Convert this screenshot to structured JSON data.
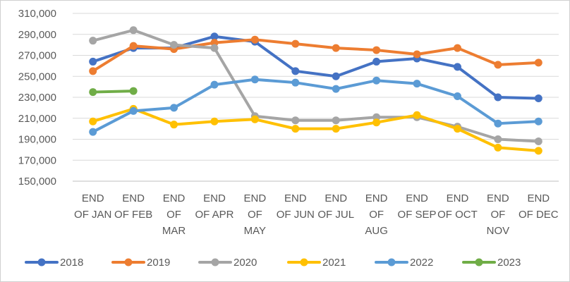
{
  "chart_data": {
    "type": "line",
    "title": "",
    "xlabel": "",
    "ylabel": "",
    "ylim": [
      150000,
      310000
    ],
    "yticks": [
      "150,000",
      "170,000",
      "190,000",
      "210,000",
      "230,000",
      "250,000",
      "270,000",
      "290,000",
      "310,000"
    ],
    "ytick_values": [
      150000,
      170000,
      190000,
      210000,
      230000,
      250000,
      270000,
      290000,
      310000
    ],
    "grid": true,
    "legend_position": "bottom",
    "categories": [
      [
        "END",
        "OF JAN"
      ],
      [
        "END",
        "OF FEB"
      ],
      [
        "END",
        "OF",
        "MAR"
      ],
      [
        "END",
        "OF APR"
      ],
      [
        "END",
        "OF",
        "MAY"
      ],
      [
        "END",
        "OF JUN"
      ],
      [
        "END",
        "OF JUL"
      ],
      [
        "END",
        "OF",
        "AUG"
      ],
      [
        "END",
        "OF SEP"
      ],
      [
        "END",
        "OF OCT"
      ],
      [
        "END",
        "OF",
        "NOV"
      ],
      [
        "END",
        "OF DEC"
      ]
    ],
    "series": [
      {
        "name": "2018",
        "color": "#4472C4",
        "values": [
          264000,
          277000,
          277000,
          288000,
          283000,
          255000,
          250000,
          264000,
          267000,
          259000,
          230000,
          229000
        ]
      },
      {
        "name": "2019",
        "color": "#ED7D31",
        "values": [
          255000,
          279000,
          276000,
          282000,
          285000,
          281000,
          277000,
          275000,
          271000,
          277000,
          261000,
          263000
        ]
      },
      {
        "name": "2020",
        "color": "#A5A5A5",
        "values": [
          284000,
          294000,
          280000,
          277000,
          212000,
          208000,
          208000,
          211000,
          211000,
          202000,
          190000,
          188000
        ]
      },
      {
        "name": "2021",
        "color": "#FFC000",
        "values": [
          207000,
          219000,
          204000,
          207000,
          209000,
          200000,
          200000,
          206000,
          213000,
          200000,
          182000,
          179000
        ]
      },
      {
        "name": "2022",
        "color": "#5B9BD5",
        "values": [
          197000,
          217000,
          220000,
          242000,
          247000,
          244000,
          238000,
          246000,
          243000,
          231000,
          205000,
          207000
        ]
      },
      {
        "name": "2023",
        "color": "#70AD47",
        "values": [
          235000,
          236000,
          null,
          null,
          null,
          null,
          null,
          null,
          null,
          null,
          null,
          null
        ]
      }
    ]
  }
}
